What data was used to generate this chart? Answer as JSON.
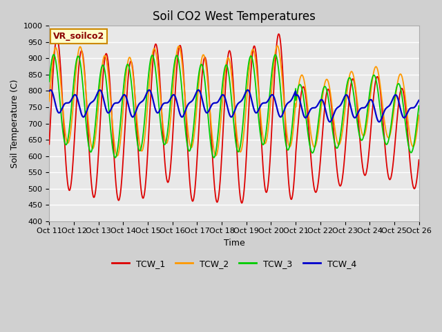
{
  "title": "Soil CO2 West Temperatures",
  "xlabel": "Time",
  "ylabel": "Soil Temperature (C)",
  "ylim": [
    400,
    1000
  ],
  "yticks": [
    400,
    450,
    500,
    550,
    600,
    650,
    700,
    750,
    800,
    850,
    900,
    950,
    1000
  ],
  "x_tick_labels": [
    "Oct 11",
    "Oct 12",
    "Oct 13",
    "Oct 14",
    "Oct 15",
    "Oct 16",
    "Oct 17",
    "Oct 18",
    "Oct 19",
    "Oct 20",
    "Oct 21",
    "Oct 22",
    "Oct 23",
    "Oct 24",
    "Oct 25",
    "Oct 26"
  ],
  "annotation_text": "VR_soilco2",
  "annotation_bg": "#ffffcc",
  "annotation_border": "#cc8800",
  "colors": {
    "TCW_1": "#dd0000",
    "TCW_2": "#ff9900",
    "TCW_3": "#00cc00",
    "TCW_4": "#0000cc"
  },
  "fig_facecolor": "#d0d0d0",
  "plot_facecolor": "#e8e8e8",
  "grid_color": "#ffffff",
  "title_fontsize": 12,
  "axis_label_fontsize": 9,
  "tick_fontsize": 8,
  "legend_fontsize": 9
}
